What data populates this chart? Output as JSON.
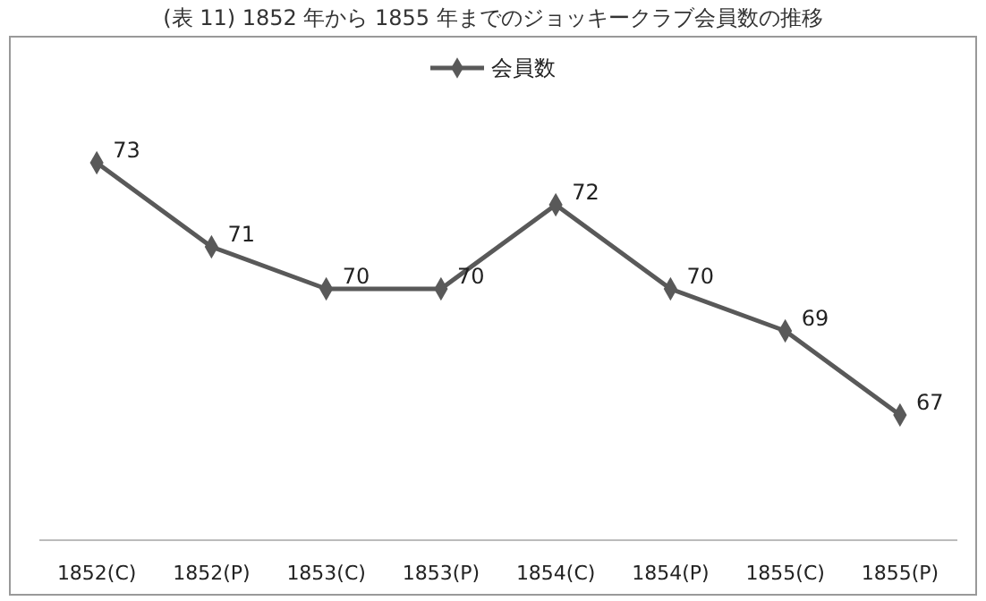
{
  "chart_data": {
    "type": "line",
    "title": "(表 11) 1852 年から 1855 年までのジョッキークラブ会員数の推移",
    "categories": [
      "1852(C)",
      "1852(P)",
      "1853(C)",
      "1853(P)",
      "1854(C)",
      "1854(P)",
      "1855(C)",
      "1855(P)"
    ],
    "series": [
      {
        "name": "会員数",
        "color": "#595959",
        "values": [
          73,
          71,
          70,
          70,
          72,
          70,
          69,
          67
        ]
      }
    ],
    "tick_labels": "x",
    "legend": "top",
    "marker": "diamond",
    "line_style": "solid",
    "data_labels": true
  }
}
